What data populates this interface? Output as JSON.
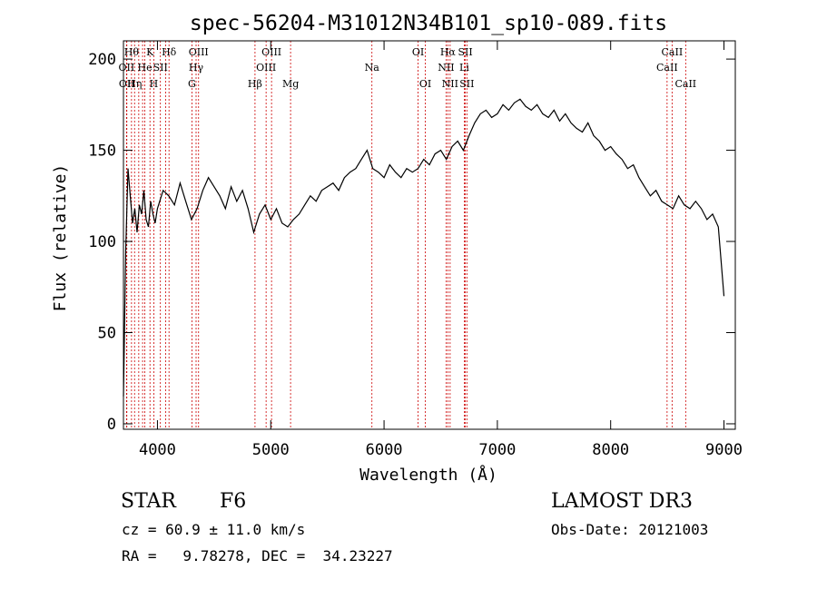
{
  "chart_data": {
    "type": "line",
    "title": "spec-56204-M31012N34B101_sp10-089.fits",
    "xlabel": "Wavelength (Å)",
    "ylabel": "Flux (relative)",
    "xlim": [
      3700,
      9100
    ],
    "ylim": [
      -3,
      210
    ],
    "xticks": [
      4000,
      5000,
      6000,
      7000,
      8000,
      9000
    ],
    "yticks": [
      0,
      50,
      100,
      150,
      200
    ],
    "grid": false,
    "line_color": "#000000",
    "marker_color": "#cc0000",
    "series": [
      {
        "name": "flux",
        "x": [
          3700,
          3720,
          3740,
          3760,
          3780,
          3800,
          3820,
          3840,
          3860,
          3880,
          3900,
          3920,
          3940,
          3960,
          3980,
          4000,
          4050,
          4100,
          4150,
          4200,
          4250,
          4300,
          4350,
          4400,
          4450,
          4500,
          4550,
          4600,
          4650,
          4700,
          4750,
          4800,
          4850,
          4900,
          4950,
          5000,
          5050,
          5100,
          5150,
          5200,
          5250,
          5300,
          5350,
          5400,
          5450,
          5500,
          5550,
          5600,
          5650,
          5700,
          5750,
          5800,
          5850,
          5900,
          5950,
          6000,
          6050,
          6100,
          6150,
          6200,
          6250,
          6300,
          6350,
          6400,
          6450,
          6500,
          6550,
          6600,
          6650,
          6700,
          6750,
          6800,
          6850,
          6900,
          6950,
          7000,
          7050,
          7100,
          7150,
          7200,
          7250,
          7300,
          7350,
          7400,
          7450,
          7500,
          7550,
          7600,
          7650,
          7700,
          7750,
          7800,
          7850,
          7900,
          7950,
          8000,
          8050,
          8100,
          8150,
          8200,
          8250,
          8300,
          8350,
          8400,
          8450,
          8500,
          8550,
          8600,
          8650,
          8700,
          8750,
          8800,
          8850,
          8900,
          8950,
          9000
        ],
        "y": [
          15,
          95,
          140,
          125,
          110,
          118,
          105,
          120,
          115,
          128,
          112,
          108,
          122,
          115,
          110,
          118,
          128,
          125,
          120,
          132,
          122,
          112,
          118,
          128,
          135,
          130,
          125,
          118,
          130,
          122,
          128,
          118,
          105,
          115,
          120,
          112,
          118,
          110,
          108,
          112,
          115,
          120,
          125,
          122,
          128,
          130,
          132,
          128,
          135,
          138,
          140,
          145,
          150,
          140,
          138,
          135,
          142,
          138,
          135,
          140,
          138,
          140,
          145,
          142,
          148,
          150,
          145,
          152,
          155,
          150,
          158,
          165,
          170,
          172,
          168,
          170,
          175,
          172,
          176,
          178,
          174,
          172,
          175,
          170,
          168,
          172,
          166,
          170,
          165,
          162,
          160,
          165,
          158,
          155,
          150,
          152,
          148,
          145,
          140,
          142,
          135,
          130,
          125,
          128,
          122,
          120,
          118,
          125,
          120,
          118,
          122,
          118,
          112,
          115,
          108,
          70
        ]
      }
    ],
    "lines": [
      {
        "wavelength": 3771,
        "label": "Hθ",
        "row": 1
      },
      {
        "wavelength": 3727,
        "label": "OII",
        "row": 2
      },
      {
        "wavelength": 3730,
        "label": "OII",
        "row": 3
      },
      {
        "wavelength": 3798,
        "label": "Hη",
        "row": 3
      },
      {
        "wavelength": 3835,
        "label": "",
        "row": 0
      },
      {
        "wavelength": 3869,
        "label": "",
        "row": 0
      },
      {
        "wavelength": 3889,
        "label": "He",
        "row": 2
      },
      {
        "wavelength": 3934,
        "label": "K",
        "row": 1
      },
      {
        "wavelength": 3968,
        "label": "H",
        "row": 3
      },
      {
        "wavelength": 4026,
        "label": "SII",
        "row": 2
      },
      {
        "wavelength": 4072,
        "label": "",
        "row": 0
      },
      {
        "wavelength": 4102,
        "label": "Hδ",
        "row": 1
      },
      {
        "wavelength": 4304,
        "label": "G",
        "row": 3
      },
      {
        "wavelength": 4341,
        "label": "Hγ",
        "row": 2
      },
      {
        "wavelength": 4363,
        "label": "OIII",
        "row": 1
      },
      {
        "wavelength": 4861,
        "label": "Hβ",
        "row": 3
      },
      {
        "wavelength": 4959,
        "label": "OIII",
        "row": 2
      },
      {
        "wavelength": 5007,
        "label": "OIII",
        "row": 1
      },
      {
        "wavelength": 5175,
        "label": "Mg",
        "row": 3
      },
      {
        "wavelength": 5893,
        "label": "Na",
        "row": 2
      },
      {
        "wavelength": 6300,
        "label": "OI",
        "row": 1
      },
      {
        "wavelength": 6364,
        "label": "OI",
        "row": 3
      },
      {
        "wavelength": 6548,
        "label": "NII",
        "row": 2
      },
      {
        "wavelength": 6563,
        "label": "Hα",
        "row": 1
      },
      {
        "wavelength": 6583,
        "label": "NII",
        "row": 3
      },
      {
        "wavelength": 6708,
        "label": "Li",
        "row": 2
      },
      {
        "wavelength": 6717,
        "label": "SII",
        "row": 1
      },
      {
        "wavelength": 6731,
        "label": "SII",
        "row": 3
      },
      {
        "wavelength": 8498,
        "label": "CaII",
        "row": 2
      },
      {
        "wavelength": 8542,
        "label": "CaII",
        "row": 1
      },
      {
        "wavelength": 8662,
        "label": "CaII",
        "row": 3
      }
    ]
  },
  "info": {
    "class": "STAR",
    "subclass": "F6",
    "survey": "LAMOST DR3",
    "cz": "cz = 60.9 ± 11.0 km/s",
    "obs_date": "Obs-Date: 20121003",
    "coords": "RA =   9.78278, DEC =  34.23227"
  }
}
